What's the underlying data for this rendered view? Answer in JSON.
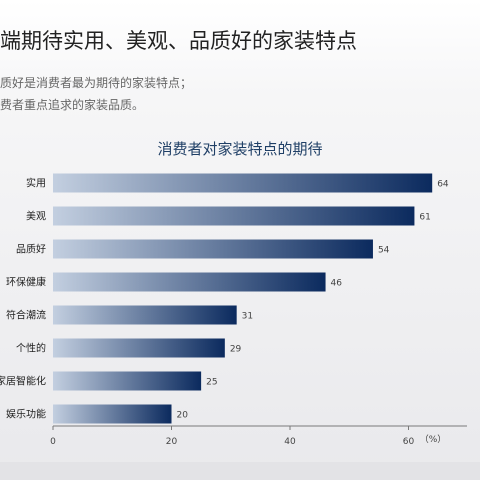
{
  "header": {
    "headline": "端期待实用、美观、品质好的家装特点",
    "summary_lines": [
      "质好是消费者最为期待的家装特点；",
      "费者重点追求的家装品质。"
    ]
  },
  "chart_data": {
    "type": "bar",
    "orientation": "horizontal",
    "title": "消费者对家装特点的期待",
    "categories": [
      "实用",
      "美观",
      "品质好",
      "环保健康",
      "符合潮流",
      "个性的",
      "家居智能化",
      "娱乐功能"
    ],
    "values": [
      64,
      61,
      54,
      46,
      31,
      29,
      25,
      20
    ],
    "xlim": [
      0,
      70
    ],
    "xticks": [
      0,
      20,
      40,
      60
    ],
    "unit": "（%）",
    "grid": false,
    "colors": {
      "bar_start": "#c3cfe0",
      "bar_end": "#0b2a5e"
    }
  }
}
